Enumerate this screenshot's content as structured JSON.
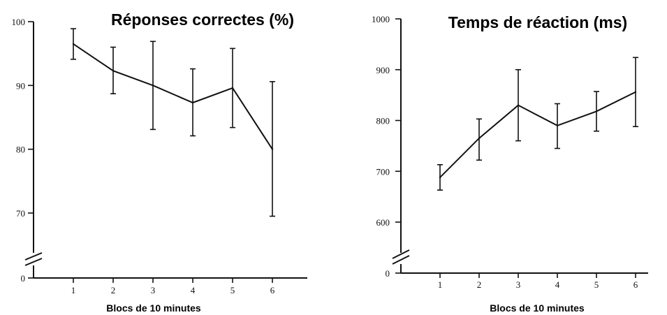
{
  "chart_data": [
    {
      "type": "line",
      "title": "Réponses correctes (%)",
      "xlabel": "Blocs de 10 minutes",
      "ylabel": "",
      "categories": [
        "1",
        "2",
        "3",
        "4",
        "5",
        "6"
      ],
      "y_ticks": [
        "0",
        "70",
        "80",
        "90",
        "100"
      ],
      "ylim": [
        60,
        100
      ],
      "axis_break": true,
      "grid": false,
      "series": [
        {
          "values": [
            96.5,
            92.3,
            90.0,
            87.3,
            89.6,
            80.0
          ],
          "error_low": [
            94.1,
            88.7,
            83.1,
            82.1,
            83.4,
            69.5
          ],
          "error_high": [
            98.9,
            96.0,
            96.9,
            92.6,
            95.8,
            90.6
          ]
        }
      ]
    },
    {
      "type": "line",
      "title": "Temps de réaction (ms)",
      "xlabel": "Blocs de 10 minutes",
      "ylabel": "",
      "categories": [
        "1",
        "2",
        "3",
        "4",
        "5",
        "6"
      ],
      "y_ticks": [
        "0",
        "600",
        "700",
        "800",
        "900",
        "1000"
      ],
      "ylim": [
        500,
        1000
      ],
      "axis_break": true,
      "grid": false,
      "series": [
        {
          "values": [
            688,
            765,
            830,
            790,
            818,
            856
          ],
          "error_low": [
            663,
            722,
            760,
            745,
            779,
            788
          ],
          "error_high": [
            713,
            803,
            900,
            833,
            857,
            924
          ]
        }
      ]
    }
  ]
}
